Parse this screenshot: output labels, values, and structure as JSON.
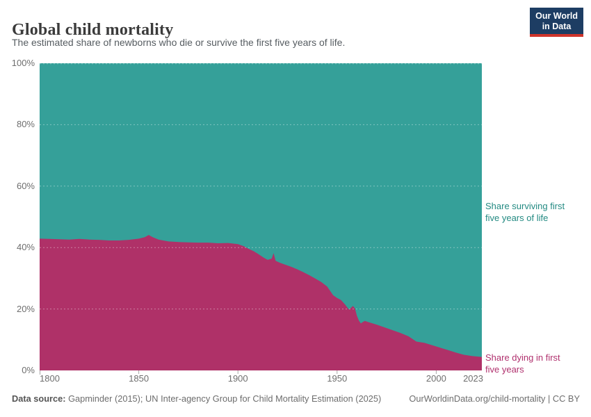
{
  "header": {
    "title": "Global child mortality",
    "subtitle": "The estimated share of newborns who die or survive the first five years of life.",
    "logo": {
      "line1": "Our World",
      "line2": "in Data",
      "bg_color": "#1d3d63",
      "accent_color": "#cf342b"
    }
  },
  "chart_data": {
    "type": "area",
    "stacked": true,
    "stacked_to": 100,
    "title": "Global child mortality",
    "xlabel": "",
    "ylabel": "",
    "x_range": [
      1800,
      2023
    ],
    "ylim": [
      0,
      100
    ],
    "grid": true,
    "y_ticks": [
      0,
      20,
      40,
      60,
      80,
      100
    ],
    "y_tick_labels": [
      "0%",
      "20%",
      "40%",
      "60%",
      "80%",
      "100%"
    ],
    "x_ticks": [
      1800,
      1850,
      1900,
      1950,
      2000,
      2023
    ],
    "x_tick_labels": [
      "1800",
      "1850",
      "1900",
      "1950",
      "2000",
      "2023"
    ],
    "years": [
      1800,
      1805,
      1810,
      1815,
      1820,
      1825,
      1830,
      1835,
      1840,
      1845,
      1850,
      1853,
      1855,
      1857,
      1860,
      1865,
      1870,
      1875,
      1880,
      1885,
      1890,
      1895,
      1900,
      1903,
      1905,
      1908,
      1910,
      1913,
      1915,
      1917,
      1918,
      1919,
      1921,
      1924,
      1927,
      1930,
      1933,
      1936,
      1939,
      1942,
      1945,
      1948,
      1950,
      1952,
      1954,
      1956,
      1958,
      1959,
      1960,
      1961,
      1962,
      1963,
      1964,
      1966,
      1970,
      1974,
      1978,
      1982,
      1986,
      1990,
      1994,
      1998,
      2002,
      2006,
      2010,
      2014,
      2018,
      2023
    ],
    "series": [
      {
        "id": "dying",
        "name": "Share dying in first five years",
        "label_line1": "Share dying in first",
        "label_line2": "five years",
        "color": "#af3168",
        "label_color": "#b0316e",
        "unit": "%",
        "values": [
          42.9,
          42.8,
          42.7,
          42.6,
          42.8,
          42.6,
          42.5,
          42.3,
          42.3,
          42.5,
          42.9,
          43.4,
          44.1,
          43.4,
          42.6,
          42.0,
          41.8,
          41.7,
          41.6,
          41.6,
          41.4,
          41.5,
          41.1,
          40.4,
          39.7,
          38.8,
          38.0,
          36.7,
          36.0,
          36.4,
          38.2,
          35.7,
          35.1,
          34.4,
          33.7,
          32.9,
          32.0,
          31.0,
          29.9,
          28.8,
          27.3,
          24.5,
          23.6,
          22.9,
          21.5,
          19.8,
          21.0,
          20.2,
          17.8,
          16.2,
          15.3,
          15.8,
          16.1,
          15.7,
          14.9,
          14.0,
          13.1,
          12.2,
          11.1,
          9.4,
          9.0,
          8.2,
          7.4,
          6.6,
          5.8,
          5.1,
          4.7,
          4.4
        ]
      },
      {
        "id": "surviving",
        "name": "Share surviving first five years of life",
        "label_line1": "Share surviving first",
        "label_line2": "five years of life",
        "color": "#35a099",
        "label_color": "#238a82",
        "unit": "%",
        "values": [
          57.1,
          57.2,
          57.3,
          57.4,
          57.2,
          57.4,
          57.5,
          57.7,
          57.7,
          57.5,
          57.1,
          56.6,
          55.9,
          56.6,
          57.4,
          58.0,
          58.2,
          58.3,
          58.4,
          58.4,
          58.6,
          58.5,
          58.9,
          59.6,
          60.3,
          61.2,
          62.0,
          63.3,
          64.0,
          63.6,
          61.8,
          64.3,
          64.9,
          65.6,
          66.3,
          67.1,
          68.0,
          69.0,
          70.1,
          71.2,
          72.7,
          75.5,
          76.4,
          77.1,
          78.5,
          80.2,
          79.0,
          79.8,
          82.2,
          83.8,
          84.7,
          84.2,
          83.9,
          84.3,
          85.1,
          86.0,
          86.9,
          87.8,
          88.9,
          90.6,
          91.0,
          91.8,
          92.6,
          93.4,
          94.2,
          94.9,
          95.3,
          95.6
        ]
      }
    ],
    "legend_position": "right-of-area-annotations"
  },
  "footer": {
    "datasource_label": "Data source:",
    "datasource_text": " Gapminder (2015); UN Inter-agency Group for Child Mortality Estimation (2025)",
    "link_text": "OurWorldinData.org/child-mortality | CC BY"
  }
}
